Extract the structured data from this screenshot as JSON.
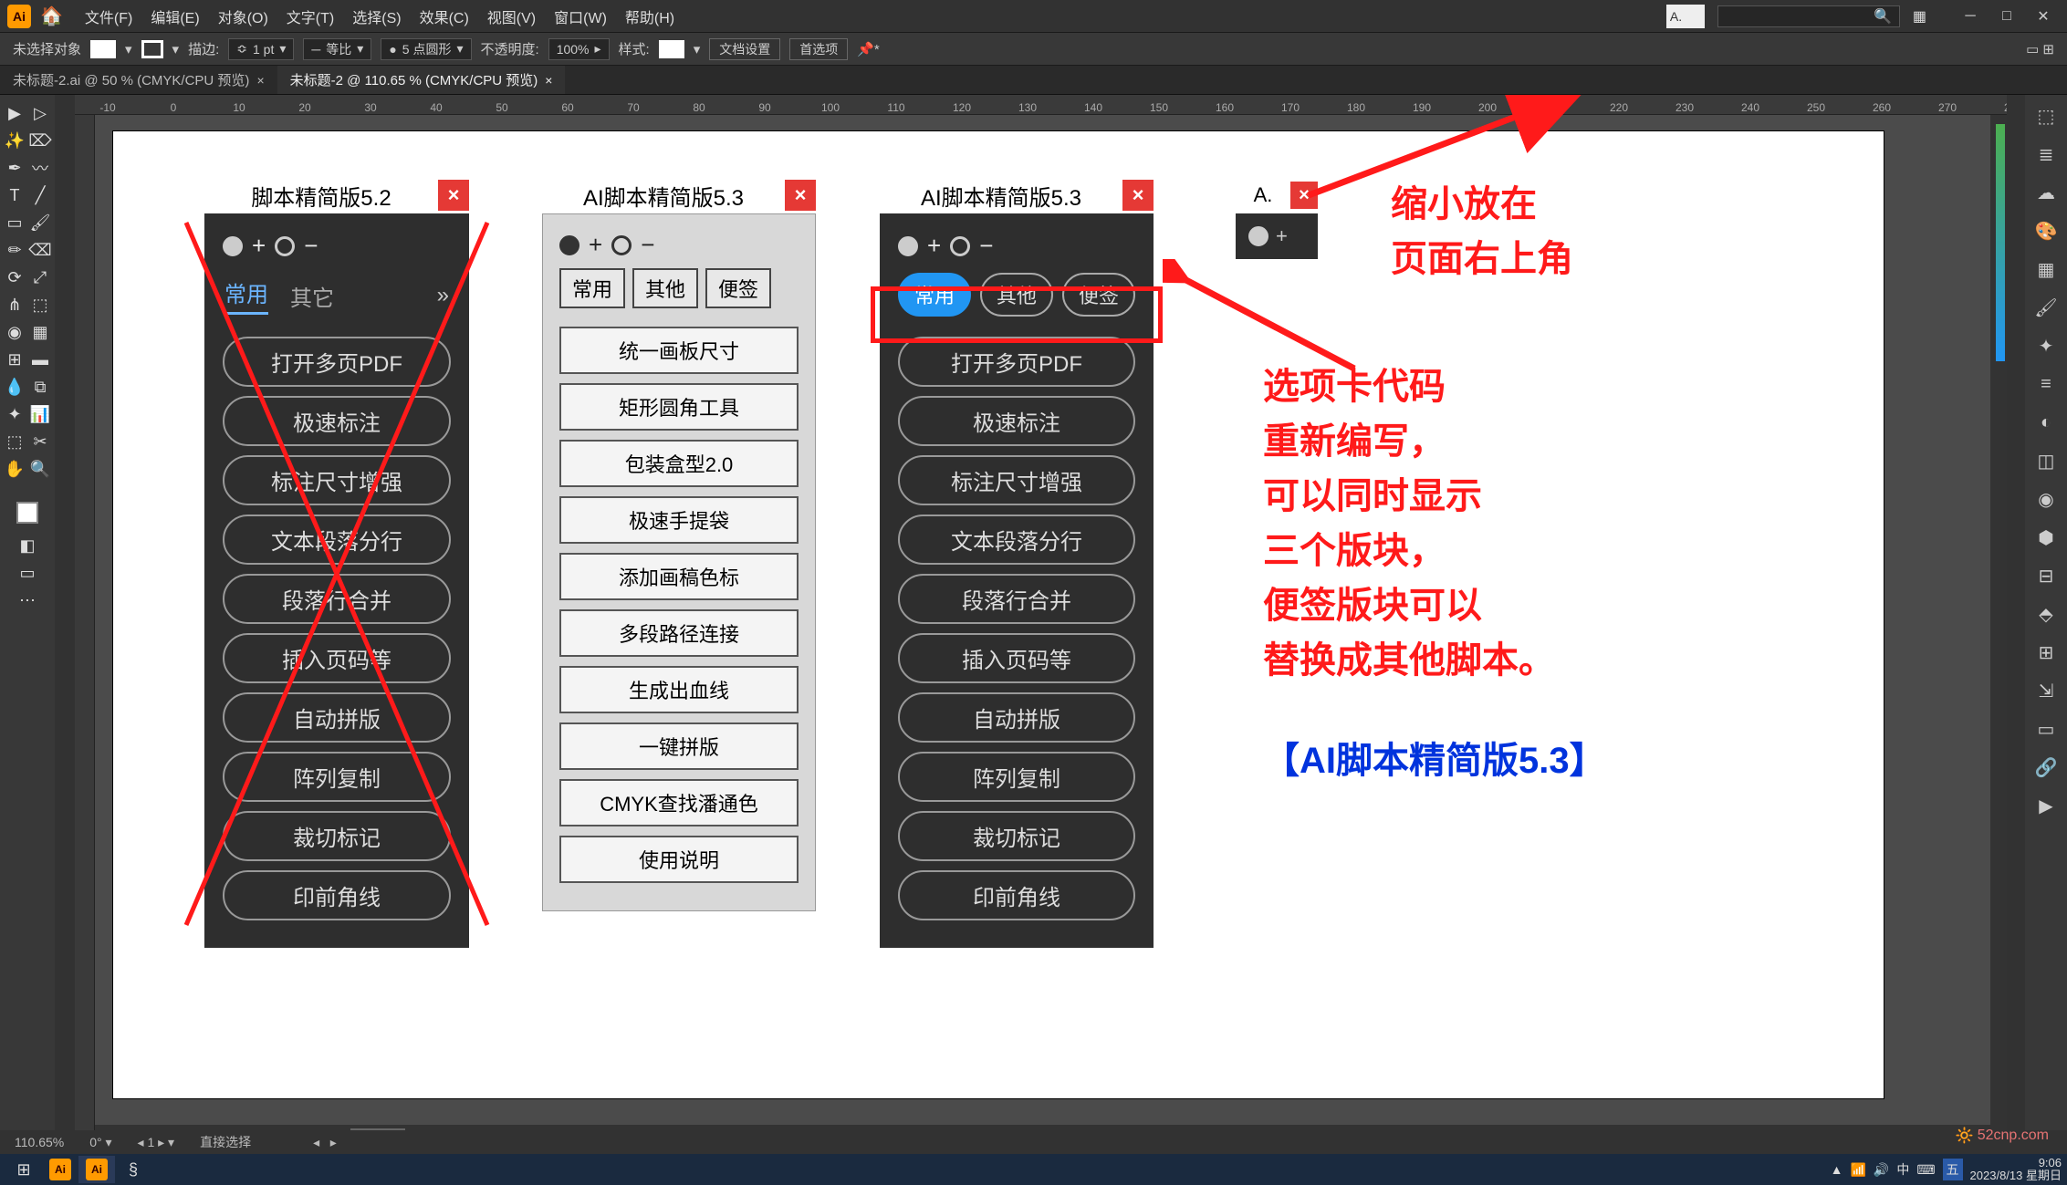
{
  "menu": {
    "file": "文件(F)",
    "edit": "编辑(E)",
    "object": "对象(O)",
    "type": "文字(T)",
    "select": "选择(S)",
    "effect": "效果(C)",
    "view": "视图(V)",
    "window": "窗口(W)",
    "help": "帮助(H)"
  },
  "optbar": {
    "noselect": "未选择对象",
    "stroke": "描边:",
    "stroke_val": "1 pt",
    "uniform": "等比",
    "points": "5 点圆形",
    "opacity": "不透明度:",
    "opacity_val": "100%",
    "style": "样式:",
    "docsetup": "文档设置",
    "prefs": "首选项"
  },
  "tabs": {
    "t1": "未标题-2.ai @ 50 % (CMYK/CPU 预览)",
    "t2": "未标题-2 @ 110.65 % (CMYK/CPU 预览)"
  },
  "status": {
    "zoom": "110.65%",
    "sel": "直接选择"
  },
  "panel52": {
    "title": "脚本精简版5.2",
    "tab1": "常用",
    "tab2": "其它",
    "btns": [
      "打开多页PDF",
      "极速标注",
      "标注尺寸增强",
      "文本段落分行",
      "段落行合并",
      "插入页码等",
      "自动拼版",
      "阵列复制",
      "裁切标记",
      "印前角线"
    ]
  },
  "panel53_light": {
    "title": "AI脚本精简版5.3",
    "tabs": [
      "常用",
      "其他",
      "便签"
    ],
    "btns": [
      "统一画板尺寸",
      "矩形圆角工具",
      "包装盒型2.0",
      "极速手提袋",
      "添加画稿色标",
      "多段路径连接",
      "生成出血线",
      "一键拼版",
      "CMYK查找潘通色",
      "使用说明"
    ]
  },
  "panel53_dark": {
    "title": "AI脚本精简版5.3",
    "tabs": [
      "常用",
      "其他",
      "便签"
    ],
    "btns": [
      "打开多页PDF",
      "极速标注",
      "标注尺寸增强",
      "文本段落分行",
      "段落行合并",
      "插入页码等",
      "自动拼版",
      "阵列复制",
      "裁切标记",
      "印前角线"
    ]
  },
  "mini": {
    "title": "A."
  },
  "anno1_l1": "缩小放在",
  "anno1_l2": "页面右上角",
  "anno2_l1": "选项卡代码",
  "anno2_l2": "重新编写，",
  "anno2_l3": "可以同时显示",
  "anno2_l4": "三个版块，",
  "anno2_l5": "便签版块可以",
  "anno2_l6": "替换成其他脚本。",
  "anno3": "【AI脚本精简版5.3】",
  "taskbar": {
    "time": "9:06",
    "date": "2023/8/13 星期日"
  },
  "watermark": "52cnp.com",
  "mini_panel": "A."
}
